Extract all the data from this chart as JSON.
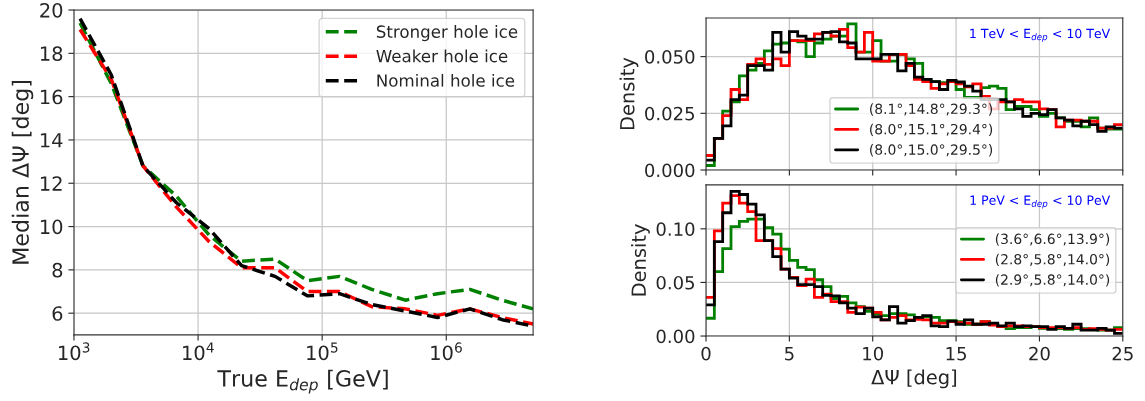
{
  "chart_data": [
    {
      "type": "line",
      "xlabel": "True E$_{dep}$ [GeV]",
      "ylabel": "Median ΔΨ [deg]",
      "log": "x",
      "grid": true,
      "legend": "top right",
      "line_style": "dashed",
      "x": [
        1120,
        2000,
        3600,
        6700,
        12300,
        22400,
        41700,
        75900,
        138000,
        251000,
        468000,
        851000,
        1550000,
        2820000,
        5010000
      ],
      "xlim": [
        1000,
        5010000
      ],
      "xticks": [
        {
          "value": 1000,
          "label": "10$^{3}$"
        },
        {
          "value": 10000,
          "label": "10$^{4}$"
        },
        {
          "value": 100000,
          "label": "10$^{5}$"
        },
        {
          "value": 1000000,
          "label": "10$^{6}$"
        }
      ],
      "ylim": [
        5,
        20
      ],
      "yticks": [
        6,
        8,
        10,
        12,
        14,
        16,
        18,
        20
      ],
      "series": [
        {
          "name": "Stronger hole ice",
          "color": "#008000",
          "values": [
            19.4,
            16.6,
            12.8,
            11.4,
            9.6,
            8.4,
            8.5,
            7.5,
            7.7,
            7.1,
            6.6,
            6.9,
            7.1,
            6.6,
            6.2
          ]
        },
        {
          "name": "Weaker hole ice",
          "color": "#ff0000",
          "values": [
            19.1,
            16.8,
            12.8,
            10.9,
            9.3,
            8.1,
            8.1,
            7.0,
            7.0,
            6.3,
            6.2,
            5.9,
            6.2,
            5.8,
            5.5
          ]
        },
        {
          "name": "Nominal hole ice",
          "color": "#000000",
          "values": [
            19.6,
            17.0,
            12.8,
            11.1,
            9.9,
            8.2,
            7.7,
            6.8,
            6.9,
            6.4,
            6.1,
            5.8,
            6.2,
            5.7,
            5.4
          ]
        }
      ]
    },
    {
      "type": "histogram",
      "ylabel": "Density",
      "grid": true,
      "legend": "bottom",
      "tick_labels": "y",
      "annotations": [
        "1 TeV < E$_{dep}$ < 10 TeV"
      ],
      "bins": [
        0,
        0.5,
        1,
        1.5,
        2,
        2.5,
        3,
        3.5,
        4,
        4.5,
        5,
        5.5,
        6,
        6.5,
        7,
        7.5,
        8,
        8.5,
        9,
        9.5,
        10,
        10.5,
        11,
        11.5,
        12,
        12.5,
        13,
        13.5,
        14,
        14.5,
        15,
        15.5,
        16,
        16.5,
        17,
        17.5,
        18,
        18.5,
        19,
        19.5,
        20,
        20.5,
        21,
        21.5,
        22,
        22.5,
        23,
        23.5,
        24,
        24.5,
        25
      ],
      "xlim": [
        0,
        25
      ],
      "xticks": [
        0,
        5,
        10,
        15,
        20,
        25
      ],
      "ylim": [
        0,
        0.067
      ],
      "yticks": [
        {
          "value": 0,
          "label": "0.000"
        },
        {
          "value": 0.025,
          "label": "0.025"
        },
        {
          "value": 0.05,
          "label": "0.050"
        }
      ],
      "series": [
        {
          "name": "(8.1°,14.8°,29.3°)",
          "color": "#008000",
          "values": [
            0.002,
            0.014,
            0.026,
            0.03,
            0.0415,
            0.044,
            0.047,
            0.0525,
            0.0555,
            0.056,
            0.057,
            0.0565,
            0.05,
            0.056,
            0.0577,
            0.059,
            0.059,
            0.0644,
            0.052,
            0.052,
            0.057,
            0.048,
            0.048,
            0.051,
            0.049,
            0.047,
            0.04,
            0.039,
            0.0385,
            0.039,
            0.0355,
            0.032,
            0.032,
            0.0363,
            0.037,
            0.036,
            0.0266,
            0.028,
            0.028,
            0.0266,
            0.0237,
            0.025,
            0.023,
            0.0215,
            0.0215,
            0.019,
            0.023,
            0.0185,
            0.018,
            0.018
          ]
        },
        {
          "name": "(8.0°,15.1°,29.4°)",
          "color": "#ff0000",
          "values": [
            0.0064,
            0.014,
            0.024,
            0.0355,
            0.031,
            0.0466,
            0.049,
            0.0466,
            0.049,
            0.046,
            0.057,
            0.057,
            0.057,
            0.06,
            0.0607,
            0.059,
            0.062,
            0.054,
            0.052,
            0.0607,
            0.048,
            0.048,
            0.051,
            0.051,
            0.046,
            0.04,
            0.039,
            0.036,
            0.038,
            0.039,
            0.038,
            0.0367,
            0.038,
            0.0325,
            0.027,
            0.03,
            0.03,
            0.031,
            0.03,
            0.03,
            0.027,
            0.0266,
            0.019,
            0.022,
            0.022,
            0.0215,
            0.0215,
            0.0185,
            0.0185,
            0.02
          ]
        },
        {
          "name": "(8.0°,15.0°,29.5°)",
          "color": "#000000",
          "values": [
            0.0044,
            0.014,
            0.0195,
            0.031,
            0.033,
            0.046,
            0.046,
            0.044,
            0.0607,
            0.052,
            0.061,
            0.059,
            0.0577,
            0.0577,
            0.0607,
            0.061,
            0.0565,
            0.056,
            0.049,
            0.049,
            0.049,
            0.051,
            0.051,
            0.0437,
            0.047,
            0.041,
            0.04,
            0.039,
            0.0355,
            0.0395,
            0.0388,
            0.037,
            0.0348,
            0.031,
            0.031,
            0.031,
            0.03,
            0.027,
            0.0237,
            0.025,
            0.0244,
            0.0266,
            0.023,
            0.022,
            0.0195,
            0.0215,
            0.02,
            0.017,
            0.019,
            0.0185
          ]
        }
      ]
    },
    {
      "type": "histogram",
      "xlabel": "ΔΨ [deg]",
      "ylabel": "Density",
      "grid": true,
      "legend": "right",
      "annotations": [
        "1 PeV < E$_{dep}$ < 10 PeV"
      ],
      "bins": [
        0,
        0.5,
        1,
        1.5,
        2,
        2.5,
        3,
        3.5,
        4,
        4.5,
        5,
        5.5,
        6,
        6.5,
        7,
        7.5,
        8,
        8.5,
        9,
        9.5,
        10,
        10.5,
        11,
        11.5,
        12,
        12.5,
        13,
        13.5,
        14,
        14.5,
        15,
        15.5,
        16,
        16.5,
        17,
        17.5,
        18,
        18.5,
        19,
        19.5,
        20,
        20.5,
        21,
        21.5,
        22,
        22.5,
        23,
        23.5,
        24,
        24.5,
        25
      ],
      "xlim": [
        0,
        25
      ],
      "xticks": [
        0,
        5,
        10,
        15,
        20,
        25
      ],
      "ylim": [
        0,
        0.141
      ],
      "yticks": [
        {
          "value": 0,
          "label": "0.00"
        },
        {
          "value": 0.05,
          "label": "0.05"
        },
        {
          "value": 0.1,
          "label": "0.10"
        }
      ],
      "series": [
        {
          "name": "(3.6°,6.6°,13.9°)",
          "color": "#008000",
          "values": [
            0.0166,
            0.06,
            0.0816,
            0.102,
            0.107,
            0.109,
            0.109,
            0.101,
            0.095,
            0.081,
            0.0706,
            0.064,
            0.062,
            0.0525,
            0.046,
            0.035,
            0.037,
            0.031,
            0.0275,
            0.023,
            0.021,
            0.019,
            0.021,
            0.021,
            0.0197,
            0.0166,
            0.018,
            0.0175,
            0.0144,
            0.0144,
            0.0134,
            0.011,
            0.011,
            0.0134,
            0.011,
            0.0087,
            0.0069,
            0.0078,
            0.0078,
            0.0087,
            0.0072,
            0.0072,
            0.0069,
            0.0062,
            0.0069,
            0.0069,
            0.0062,
            0.0056,
            0.0056,
            0.0078
          ]
        },
        {
          "name": "(2.8°,5.8°,14.0°)",
          "color": "#ff0000",
          "values": [
            0.036,
            0.098,
            0.124,
            0.131,
            0.124,
            0.116,
            0.089,
            0.089,
            0.0816,
            0.0625,
            0.0547,
            0.047,
            0.053,
            0.036,
            0.039,
            0.032,
            0.032,
            0.022,
            0.027,
            0.026,
            0.022,
            0.015,
            0.0175,
            0.019,
            0.015,
            0.0156,
            0.015,
            0.012,
            0.012,
            0.0134,
            0.0125,
            0.012,
            0.011,
            0.0134,
            0.0103,
            0.0087,
            0.0094,
            0.0094,
            0.0087,
            0.0087,
            0.0078,
            0.0078,
            0.0078,
            0.0069,
            0.0078,
            0.0062,
            0.0069,
            0.0062,
            0.0056,
            0.0062
          ]
        },
        {
          "name": "(2.9°,5.8°,14.0°)",
          "color": "#000000",
          "values": [
            0.029,
            0.088,
            0.115,
            0.135,
            0.132,
            0.123,
            0.113,
            0.089,
            0.074,
            0.0625,
            0.054,
            0.048,
            0.048,
            0.046,
            0.038,
            0.0375,
            0.031,
            0.026,
            0.021,
            0.026,
            0.018,
            0.015,
            0.0275,
            0.012,
            0.0144,
            0.0175,
            0.019,
            0.0094,
            0.0087,
            0.014,
            0.011,
            0.015,
            0.011,
            0.011,
            0.012,
            0.0094,
            0.012,
            0.0087,
            0.0094,
            0.0087,
            0.0087,
            0.0062,
            0.0087,
            0.0072,
            0.011,
            0.0056,
            0.0056,
            0.0072,
            0.0056,
            0.0025
          ]
        }
      ]
    }
  ]
}
